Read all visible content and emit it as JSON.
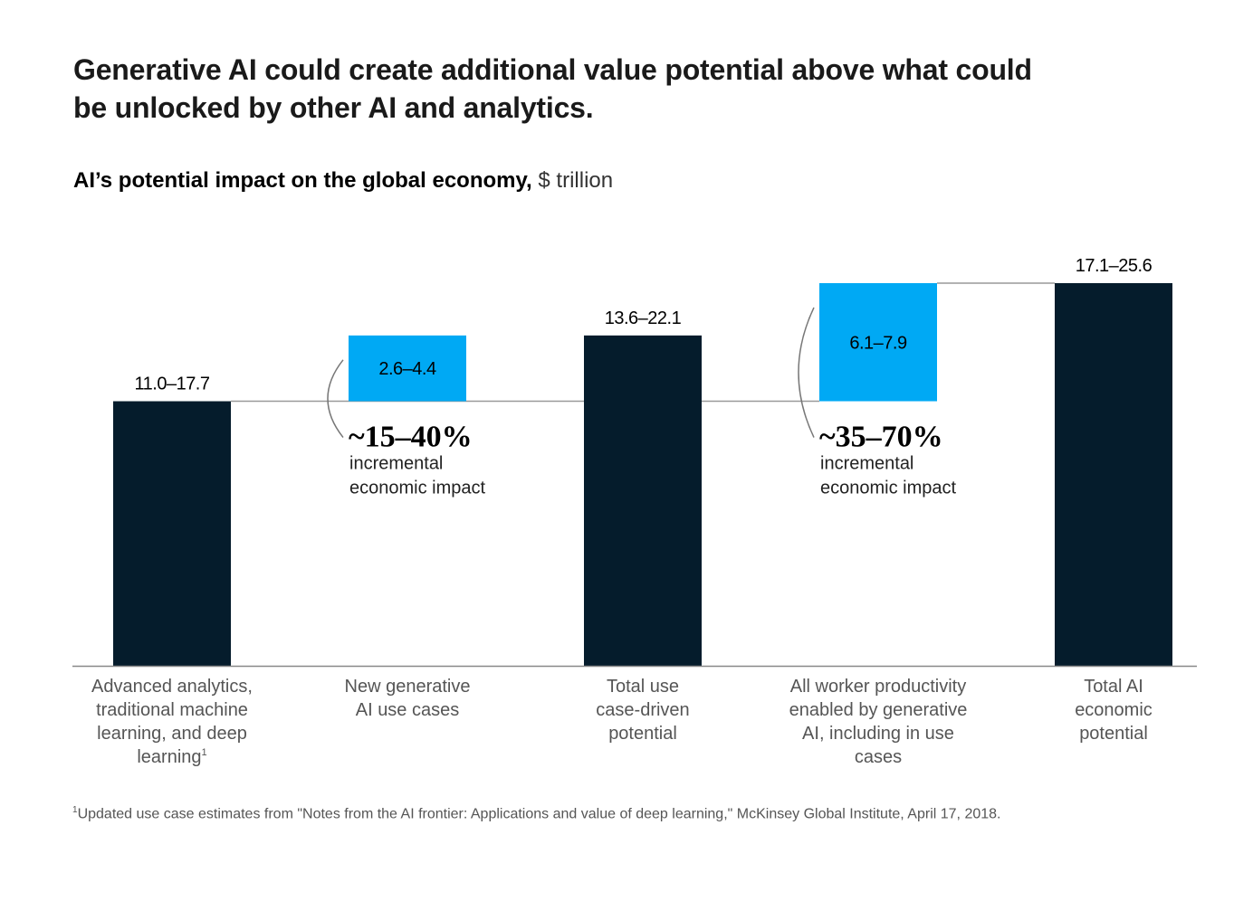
{
  "title": "Generative AI could create additional value potential above what could be unlocked by other AI and analytics.",
  "subtitle_bold": "AI’s potential impact on the global economy,",
  "subtitle_unit": "$ trillion",
  "footnote_marker": "1",
  "footnote": "Updated use case estimates from \"Notes from the AI frontier: Applications and value of deep learning,\" McKinsey Global Institute, April 17, 2018.",
  "colors": {
    "total": "#051c2c",
    "increment": "#00a9f4",
    "connector": "#999999",
    "axis": "#888888",
    "bracket": "#777777"
  },
  "chart_data": {
    "type": "bar",
    "subtype": "waterfall",
    "title": "AI’s potential impact on the global economy, $ trillion",
    "xlabel": "",
    "ylabel": "$ trillion",
    "ylim": [
      0,
      25.6
    ],
    "grid": false,
    "categories": [
      [
        "Advanced analytics,",
        "traditional machine",
        "learning, and deep",
        "learning"
      ],
      [
        "New generative",
        "AI use cases"
      ],
      [
        "Total use",
        "case-driven",
        "potential"
      ],
      [
        "All worker productivity",
        "enabled by generative",
        "AI, including in use",
        "cases"
      ],
      [
        "Total AI",
        "economic",
        "potential"
      ]
    ],
    "category_superscripts": [
      "1",
      "",
      "",
      "",
      ""
    ],
    "bars": [
      {
        "kind": "total",
        "label": "11.0–17.7",
        "range": [
          11.0,
          17.7
        ],
        "base": 0,
        "top": 17.7
      },
      {
        "kind": "increment",
        "label": "2.6–4.4",
        "range": [
          2.6,
          4.4
        ],
        "base": 17.7,
        "top": 22.1
      },
      {
        "kind": "total",
        "label": "13.6–22.1",
        "range": [
          13.6,
          22.1
        ],
        "base": 0,
        "top": 22.1
      },
      {
        "kind": "increment",
        "label": "6.1–7.9",
        "range": [
          6.1,
          7.9
        ],
        "base": 17.7,
        "top": 25.6
      },
      {
        "kind": "total",
        "label": "17.1–25.6",
        "range": [
          17.1,
          25.6
        ],
        "base": 0,
        "top": 25.6
      }
    ],
    "annotations": [
      {
        "bar_index": 1,
        "value": "~15–40%",
        "text_lines": [
          "incremental",
          "economic impact"
        ]
      },
      {
        "bar_index": 3,
        "value": "~35–70%",
        "text_lines": [
          "incremental",
          "economic impact"
        ]
      }
    ]
  }
}
